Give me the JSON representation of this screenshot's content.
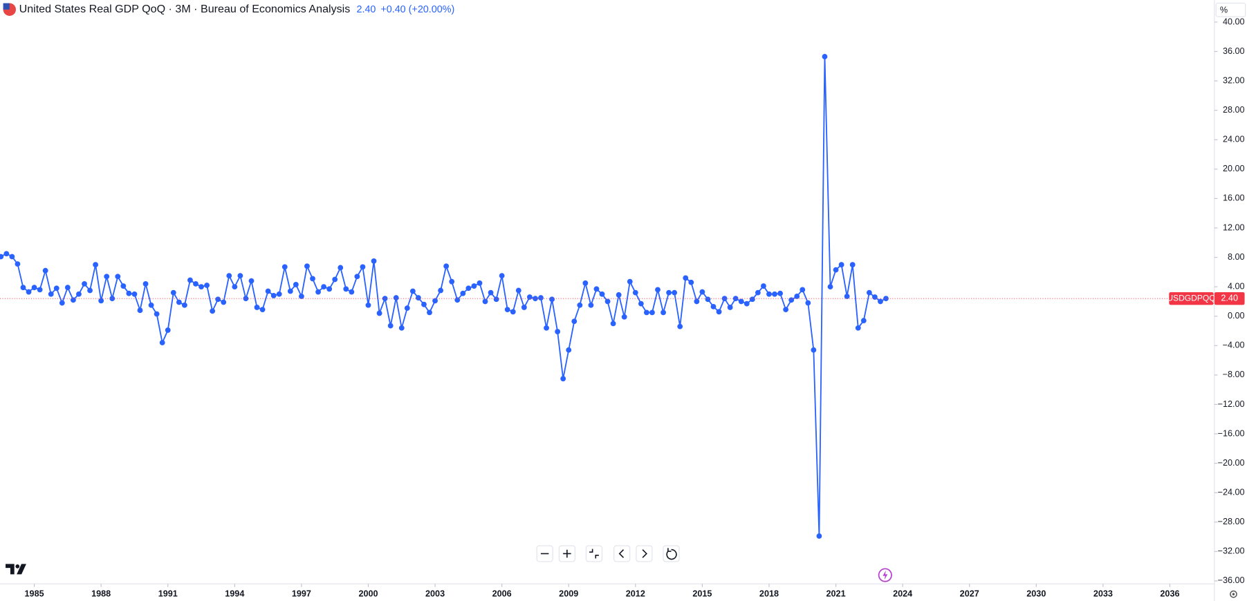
{
  "header": {
    "title": "United States Real GDP QoQ · 3M · Bureau of Economics Analysis",
    "value": "2.40",
    "change": "+0.40 (+20.00%)"
  },
  "chart_data": {
    "type": "line",
    "unit": "%",
    "x": [
      1983.5,
      1983.75,
      1984,
      1984.25,
      1984.5,
      1984.75,
      1985,
      1985.25,
      1985.5,
      1985.75,
      1986,
      1986.25,
      1986.5,
      1986.75,
      1987,
      1987.25,
      1987.5,
      1987.75,
      1988,
      1988.25,
      1988.5,
      1988.75,
      1989,
      1989.25,
      1989.5,
      1989.75,
      1990,
      1990.25,
      1990.5,
      1990.75,
      1991,
      1991.25,
      1991.5,
      1991.75,
      1992,
      1992.25,
      1992.5,
      1992.75,
      1993,
      1993.25,
      1993.5,
      1993.75,
      1994,
      1994.25,
      1994.5,
      1994.75,
      1995,
      1995.25,
      1995.5,
      1995.75,
      1996,
      1996.25,
      1996.5,
      1996.75,
      1997,
      1997.25,
      1997.5,
      1997.75,
      1998,
      1998.25,
      1998.5,
      1998.75,
      1999,
      1999.25,
      1999.5,
      1999.75,
      2000,
      2000.25,
      2000.5,
      2000.75,
      2001,
      2001.25,
      2001.5,
      2001.75,
      2002,
      2002.25,
      2002.5,
      2002.75,
      2003,
      2003.25,
      2003.5,
      2003.75,
      2004,
      2004.25,
      2004.5,
      2004.75,
      2005,
      2005.25,
      2005.5,
      2005.75,
      2006,
      2006.25,
      2006.5,
      2006.75,
      2007,
      2007.25,
      2007.5,
      2007.75,
      2008,
      2008.25,
      2008.5,
      2008.75,
      2009,
      2009.25,
      2009.5,
      2009.75,
      2010,
      2010.25,
      2010.5,
      2010.75,
      2011,
      2011.25,
      2011.5,
      2011.75,
      2012,
      2012.25,
      2012.5,
      2012.75,
      2013,
      2013.25,
      2013.5,
      2013.75,
      2014,
      2014.25,
      2014.5,
      2014.75,
      2015,
      2015.25,
      2015.5,
      2015.75,
      2016,
      2016.25,
      2016.5,
      2016.75,
      2017,
      2017.25,
      2017.5,
      2017.75,
      2018,
      2018.25,
      2018.5,
      2018.75,
      2019,
      2019.25,
      2019.5,
      2019.75,
      2020,
      2020.25,
      2020.5,
      2020.75,
      2021,
      2021.25,
      2021.5,
      2021.75,
      2022,
      2022.25,
      2022.5,
      2022.75,
      2023,
      2023.25
    ],
    "series": [
      {
        "name": "USDGDPQQ",
        "color": "#2962ff",
        "values": [
          8.1,
          8.5,
          8.1,
          7.1,
          3.9,
          3.3,
          3.9,
          3.6,
          6.2,
          3.0,
          3.8,
          1.8,
          3.9,
          2.2,
          3.0,
          4.4,
          3.5,
          7.0,
          2.1,
          5.4,
          2.4,
          5.4,
          4.1,
          3.1,
          3.0,
          0.8,
          4.4,
          1.5,
          0.3,
          -3.6,
          -1.9,
          3.2,
          1.9,
          1.5,
          4.9,
          4.4,
          4.0,
          4.2,
          0.7,
          2.3,
          1.9,
          5.5,
          4.0,
          5.5,
          2.4,
          4.8,
          1.2,
          0.9,
          3.4,
          2.8,
          3.0,
          6.7,
          3.4,
          4.3,
          2.7,
          6.8,
          5.1,
          3.3,
          4.0,
          3.7,
          5.0,
          6.6,
          3.7,
          3.3,
          5.4,
          6.7,
          1.5,
          7.5,
          0.4,
          2.4,
          -1.3,
          2.5,
          -1.6,
          1.1,
          3.4,
          2.5,
          1.6,
          0.5,
          2.1,
          3.5,
          6.8,
          4.7,
          2.2,
          3.1,
          3.8,
          4.1,
          4.5,
          2.0,
          3.2,
          2.3,
          5.5,
          0.9,
          0.6,
          3.5,
          1.2,
          2.6,
          2.4,
          2.5,
          -1.6,
          2.3,
          -2.1,
          -8.5,
          -4.6,
          -0.7,
          1.5,
          4.5,
          1.5,
          3.7,
          3.0,
          2.0,
          -1.0,
          2.9,
          -0.1,
          4.7,
          3.2,
          1.7,
          0.5,
          0.5,
          3.6,
          0.5,
          3.2,
          3.2,
          -1.4,
          5.2,
          4.6,
          2.0,
          3.3,
          2.3,
          1.3,
          0.6,
          2.4,
          1.2,
          2.4,
          2.0,
          1.7,
          2.3,
          3.2,
          4.1,
          3.0,
          3.0,
          3.1,
          0.9,
          2.2,
          2.7,
          3.6,
          1.8,
          -4.6,
          -29.9,
          35.3,
          4.0,
          6.3,
          7.0,
          2.7,
          7.0,
          -1.6,
          -0.6,
          3.2,
          2.6,
          2.0,
          2.4
        ]
      }
    ],
    "xlim": [
      1983.46,
      2038.0
    ],
    "xticks": [
      1985,
      1988,
      1991,
      1994,
      1997,
      2000,
      2003,
      2006,
      2009,
      2012,
      2015,
      2018,
      2021,
      2024,
      2027,
      2030,
      2033,
      2036
    ],
    "ylim": [
      -36.4,
      43.0
    ],
    "yticks": [
      {
        "value": -36,
        "label": "−36.00"
      },
      {
        "value": -32,
        "label": "−32.00"
      },
      {
        "value": -28,
        "label": "−28.00"
      },
      {
        "value": -24,
        "label": "−24.00"
      },
      {
        "value": -20,
        "label": "−20.00"
      },
      {
        "value": -16,
        "label": "−16.00"
      },
      {
        "value": -12,
        "label": "−12.00"
      },
      {
        "value": -8,
        "label": "−8.00"
      },
      {
        "value": -4,
        "label": "−4.00"
      },
      {
        "value": 0,
        "label": "0.00"
      },
      {
        "value": 4,
        "label": "4.00"
      },
      {
        "value": 8,
        "label": "8.00"
      },
      {
        "value": 12,
        "label": "12.00"
      },
      {
        "value": 16,
        "label": "16.00"
      },
      {
        "value": 20,
        "label": "20.00"
      },
      {
        "value": 24,
        "label": "24.00"
      },
      {
        "value": 28,
        "label": "28.00"
      },
      {
        "value": 32,
        "label": "32.00"
      },
      {
        "value": 36,
        "label": "36.00"
      },
      {
        "value": 40,
        "label": "40.00"
      }
    ],
    "grid": false,
    "markers": true
  }
}
